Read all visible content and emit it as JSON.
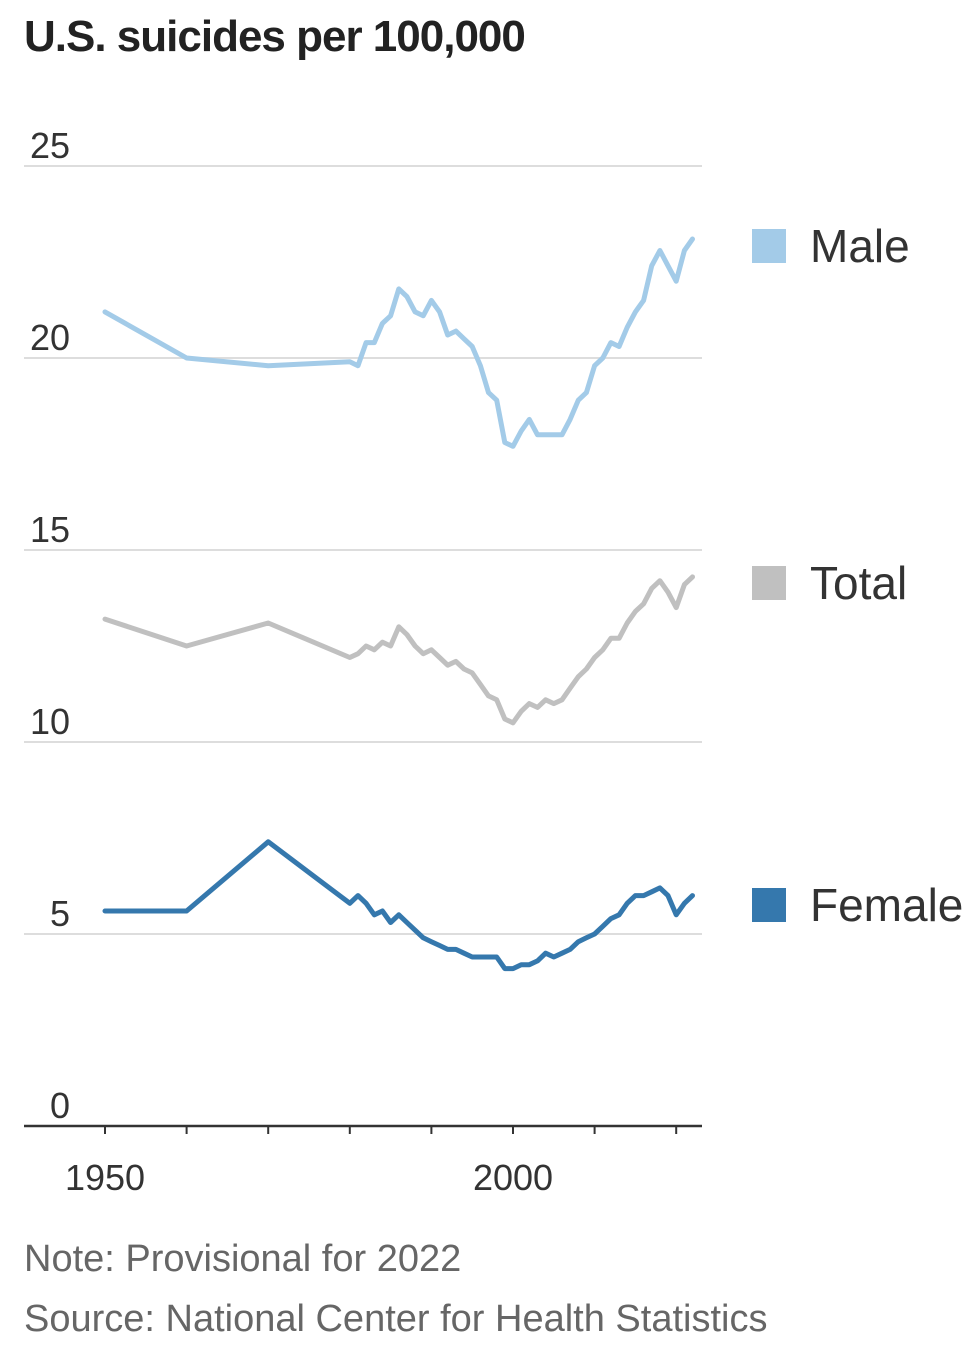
{
  "title": "U.S. suicides per 100,000",
  "note": "Note: Provisional for 2022",
  "source": "Source: National Center for Health Statistics",
  "chart_data": {
    "type": "line",
    "title": "U.S. suicides per 100,000",
    "xlabel": "",
    "ylabel": "",
    "xlim": [
      1945,
      2024
    ],
    "ylim": [
      0,
      25
    ],
    "yticks": [
      0,
      5,
      10,
      15,
      20,
      25
    ],
    "xtick_labels": [
      {
        "value": 1950,
        "label": "1950"
      },
      {
        "value": 2000,
        "label": "2000"
      }
    ],
    "xticks_minor": [
      1950,
      1960,
      1970,
      1980,
      1990,
      2000,
      2010,
      2020
    ],
    "grid": true,
    "legend": "right",
    "x": [
      1950,
      1960,
      1970,
      1980,
      1981,
      1982,
      1983,
      1984,
      1985,
      1986,
      1987,
      1988,
      1989,
      1990,
      1991,
      1992,
      1993,
      1994,
      1995,
      1996,
      1997,
      1998,
      1999,
      2000,
      2001,
      2002,
      2003,
      2004,
      2005,
      2006,
      2007,
      2008,
      2009,
      2010,
      2011,
      2012,
      2013,
      2014,
      2015,
      2016,
      2017,
      2018,
      2019,
      2020,
      2021,
      2022
    ],
    "series": [
      {
        "name": "Male",
        "color": "#a3cbe8",
        "values": [
          21.2,
          20.0,
          19.8,
          19.9,
          19.8,
          20.4,
          20.4,
          20.9,
          21.1,
          21.8,
          21.6,
          21.2,
          21.1,
          21.5,
          21.2,
          20.6,
          20.7,
          20.5,
          20.3,
          19.8,
          19.1,
          18.9,
          17.8,
          17.7,
          18.1,
          18.4,
          18.0,
          18.0,
          18.0,
          18.0,
          18.4,
          18.9,
          19.1,
          19.8,
          20.0,
          20.4,
          20.3,
          20.8,
          21.2,
          21.5,
          22.4,
          22.8,
          22.4,
          22.0,
          22.8,
          23.1
        ]
      },
      {
        "name": "Total",
        "color": "#c0c0c0",
        "values": [
          13.2,
          12.5,
          13.1,
          12.2,
          12.3,
          12.5,
          12.4,
          12.6,
          12.5,
          13.0,
          12.8,
          12.5,
          12.3,
          12.4,
          12.2,
          12.0,
          12.1,
          11.9,
          11.8,
          11.5,
          11.2,
          11.1,
          10.6,
          10.5,
          10.8,
          11.0,
          10.9,
          11.1,
          11.0,
          11.1,
          11.4,
          11.7,
          11.9,
          12.2,
          12.4,
          12.7,
          12.7,
          13.1,
          13.4,
          13.6,
          14.0,
          14.2,
          13.9,
          13.5,
          14.1,
          14.3
        ]
      },
      {
        "name": "Female",
        "color": "#3578ad",
        "values": [
          5.6,
          5.6,
          7.4,
          5.8,
          6.0,
          5.8,
          5.5,
          5.6,
          5.3,
          5.5,
          5.3,
          5.1,
          4.9,
          4.8,
          4.7,
          4.6,
          4.6,
          4.5,
          4.4,
          4.4,
          4.4,
          4.4,
          4.1,
          4.1,
          4.2,
          4.2,
          4.3,
          4.5,
          4.4,
          4.5,
          4.6,
          4.8,
          4.9,
          5.0,
          5.2,
          5.4,
          5.5,
          5.8,
          6.0,
          6.0,
          6.1,
          6.2,
          6.0,
          5.5,
          5.8,
          6.0
        ]
      }
    ]
  }
}
